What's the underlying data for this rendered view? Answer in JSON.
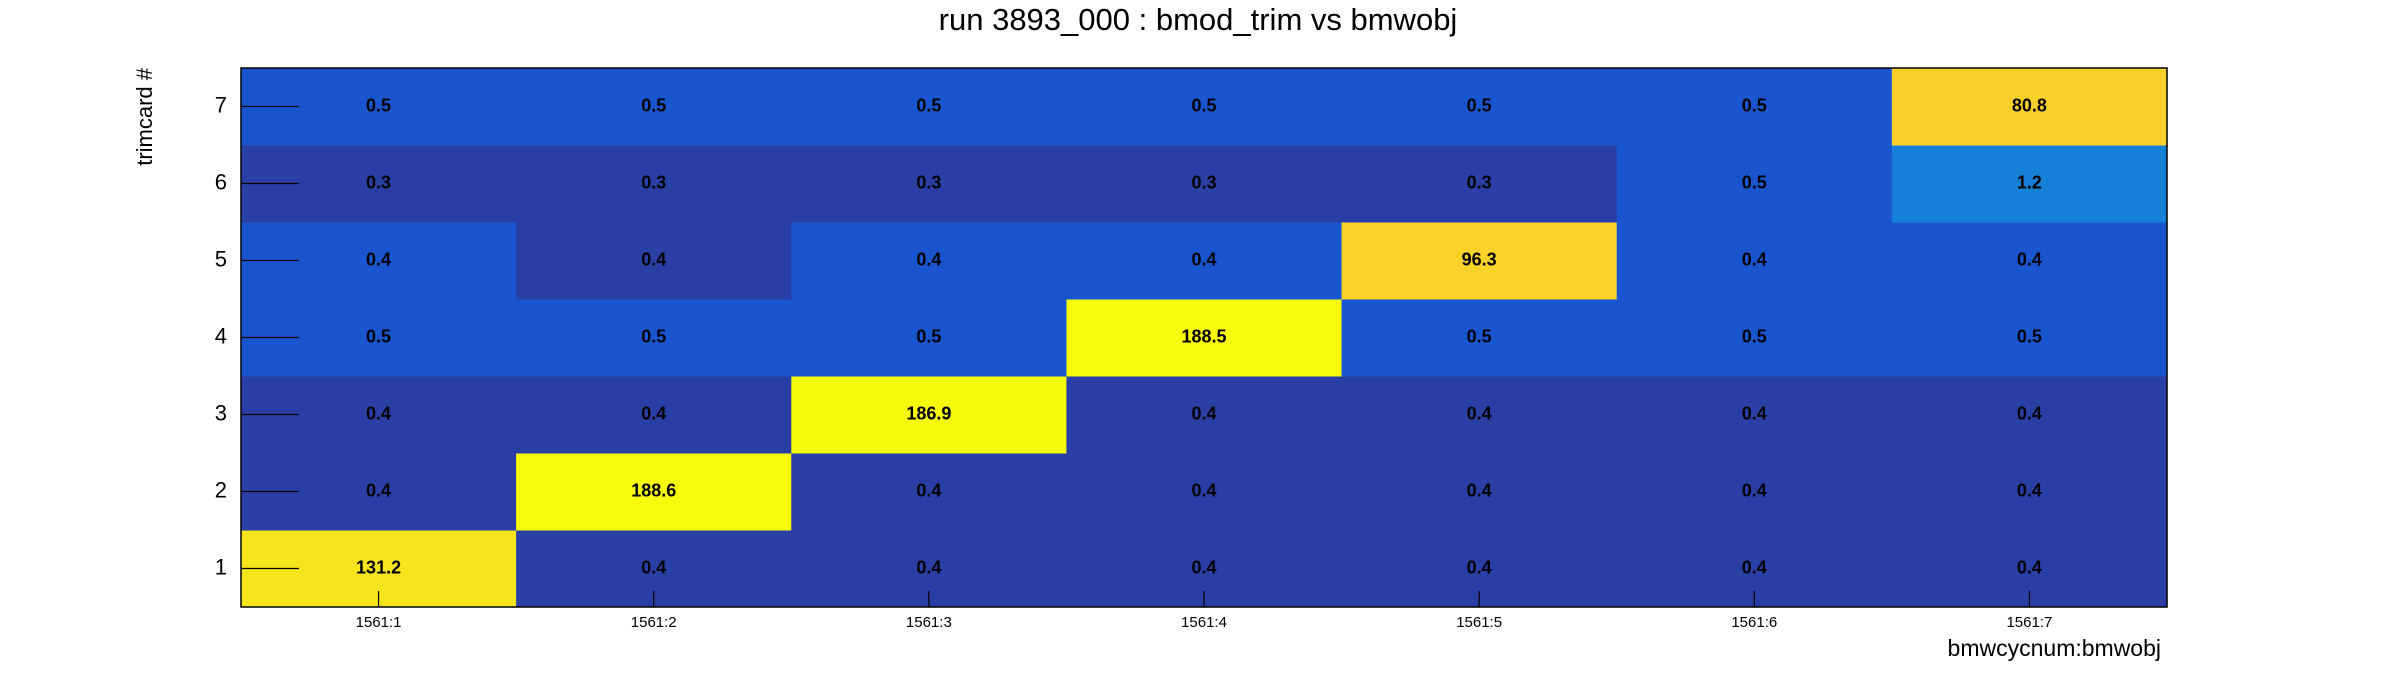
{
  "chart_data": {
    "type": "heatmap",
    "title": "run 3893_000 : bmod_trim vs bmwobj",
    "x_label": "bmwcycnum:bmwobj",
    "y_label": "trimcard #",
    "x_categories": [
      "1561:1",
      "1561:2",
      "1561:3",
      "1561:4",
      "1561:5",
      "1561:6",
      "1561:7"
    ],
    "y_categories": [
      "1",
      "2",
      "3",
      "4",
      "5",
      "6",
      "7"
    ],
    "values": [
      [
        131.2,
        0.4,
        0.4,
        0.4,
        0.4,
        0.4,
        0.4
      ],
      [
        0.4,
        188.6,
        0.4,
        0.4,
        0.4,
        0.4,
        0.4
      ],
      [
        0.4,
        0.4,
        186.9,
        0.4,
        0.4,
        0.4,
        0.4
      ],
      [
        0.5,
        0.5,
        0.5,
        188.5,
        0.5,
        0.5,
        0.5
      ],
      [
        0.4,
        0.4,
        0.4,
        0.4,
        96.3,
        0.4,
        0.4
      ],
      [
        0.3,
        0.3,
        0.3,
        0.3,
        0.3,
        0.5,
        1.2
      ],
      [
        0.5,
        0.5,
        0.5,
        0.5,
        0.5,
        0.5,
        80.8
      ]
    ],
    "colors": [
      [
        "#f6e51c",
        "#2a3fa6",
        "#2a3fa6",
        "#2a3fa6",
        "#2a3fa6",
        "#2a3fa6",
        "#2a3fa6"
      ],
      [
        "#2a3fa6",
        "#f8fa0d",
        "#2a3fa6",
        "#2a3fa6",
        "#2a3fa6",
        "#2a3fa6",
        "#2a3fa6"
      ],
      [
        "#2a3fa6",
        "#2a3fa6",
        "#f6f90e",
        "#2a3fa6",
        "#2a3fa6",
        "#2a3fa6",
        "#2a3fa6"
      ],
      [
        "#1a55d0",
        "#1a55d0",
        "#1a55d0",
        "#f8fa0d",
        "#1a55d0",
        "#1a55d0",
        "#1a55d0"
      ],
      [
        "#1a55d0",
        "#2a3fa6",
        "#1a55d0",
        "#1a55d0",
        "#fad22a",
        "#1a55d0",
        "#1a55d0"
      ],
      [
        "#2a3fa6",
        "#2a3fa6",
        "#2a3fa6",
        "#2a3fa6",
        "#2a3fa6",
        "#1a55d0",
        "#1580d8"
      ],
      [
        "#1a55d0",
        "#1a55d0",
        "#1a55d0",
        "#1a55d0",
        "#1a55d0",
        "#1a55d0",
        "#fcd02b"
      ]
    ]
  }
}
